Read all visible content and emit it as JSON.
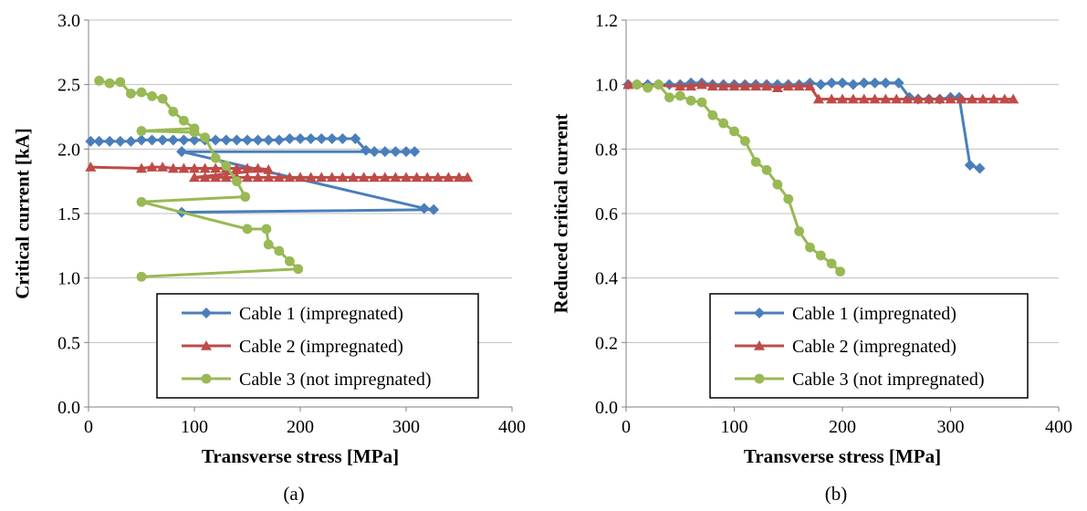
{
  "chart_data": [
    {
      "type": "line",
      "panel_label": "(a)",
      "xlabel": "Transverse stress [MPa]",
      "ylabel": "Critical current [kA]",
      "xlim": [
        0,
        400
      ],
      "ylim": [
        0,
        3.0
      ],
      "xticks": [
        "0",
        "100",
        "200",
        "300",
        "400"
      ],
      "yticks": [
        "0.0",
        "0.5",
        "1.0",
        "1.5",
        "2.0",
        "2.5",
        "3.0"
      ],
      "grid": "horizontal",
      "legend_position": "bottom-right",
      "series": [
        {
          "name": "Cable 1 (impregnated)",
          "color": "#4a7ebb",
          "marker": "diamond",
          "points": [
            [
              2,
              2.06
            ],
            [
              10,
              2.06
            ],
            [
              20,
              2.06
            ],
            [
              30,
              2.06
            ],
            [
              40,
              2.06
            ],
            [
              50,
              2.07
            ],
            [
              60,
              2.07
            ],
            [
              70,
              2.07
            ],
            [
              80,
              2.07
            ],
            [
              90,
              2.07
            ],
            [
              100,
              2.07
            ],
            [
              110,
              2.07
            ],
            [
              120,
              2.07
            ],
            [
              130,
              2.07
            ],
            [
              140,
              2.07
            ],
            [
              150,
              2.07
            ],
            [
              160,
              2.07
            ],
            [
              170,
              2.07
            ],
            [
              180,
              2.07
            ],
            [
              190,
              2.08
            ],
            [
              200,
              2.08
            ],
            [
              210,
              2.08
            ],
            [
              220,
              2.08
            ],
            [
              230,
              2.08
            ],
            [
              240,
              2.08
            ],
            [
              252,
              2.08
            ],
            [
              262,
              1.99
            ],
            [
              270,
              1.98
            ],
            [
              280,
              1.98
            ],
            [
              290,
              1.98
            ],
            [
              300,
              1.98
            ],
            [
              308,
              1.98
            ],
            [
              88,
              1.98
            ],
            [
              317,
              1.54
            ],
            [
              326,
              1.53
            ],
            [
              88,
              1.51
            ]
          ]
        },
        {
          "name": "Cable 2 (impregnated)",
          "color": "#be4b48",
          "marker": "triangle",
          "points": [
            [
              2,
              1.86
            ],
            [
              50,
              1.85
            ],
            [
              60,
              1.86
            ],
            [
              70,
              1.86
            ],
            [
              80,
              1.85
            ],
            [
              90,
              1.85
            ],
            [
              100,
              1.85
            ],
            [
              110,
              1.85
            ],
            [
              120,
              1.85
            ],
            [
              130,
              1.85
            ],
            [
              140,
              1.85
            ],
            [
              150,
              1.85
            ],
            [
              160,
              1.85
            ],
            [
              170,
              1.84
            ],
            [
              100,
              1.78
            ],
            [
              110,
              1.78
            ],
            [
              120,
              1.78
            ],
            [
              130,
              1.78
            ],
            [
              140,
              1.78
            ],
            [
              150,
              1.78
            ],
            [
              160,
              1.78
            ],
            [
              170,
              1.78
            ],
            [
              180,
              1.78
            ],
            [
              190,
              1.78
            ],
            [
              200,
              1.78
            ],
            [
              210,
              1.78
            ],
            [
              220,
              1.78
            ],
            [
              230,
              1.78
            ],
            [
              240,
              1.78
            ],
            [
              250,
              1.78
            ],
            [
              260,
              1.78
            ],
            [
              270,
              1.78
            ],
            [
              280,
              1.78
            ],
            [
              290,
              1.78
            ],
            [
              300,
              1.78
            ],
            [
              310,
              1.78
            ],
            [
              320,
              1.78
            ],
            [
              330,
              1.78
            ],
            [
              340,
              1.78
            ],
            [
              350,
              1.78
            ],
            [
              358,
              1.78
            ]
          ]
        },
        {
          "name": "Cable 3 (not impregnated)",
          "color": "#98b954",
          "marker": "circle",
          "points": [
            [
              10,
              2.53
            ],
            [
              20,
              2.51
            ],
            [
              30,
              2.52
            ],
            [
              40,
              2.43
            ],
            [
              50,
              2.44
            ],
            [
              60,
              2.41
            ],
            [
              70,
              2.39
            ],
            [
              80,
              2.29
            ],
            [
              90,
              2.22
            ],
            [
              100,
              2.16
            ],
            [
              50,
              2.14
            ],
            [
              100,
              2.13
            ],
            [
              110,
              2.09
            ],
            [
              120,
              1.93
            ],
            [
              130,
              1.87
            ],
            [
              140,
              1.75
            ],
            [
              148,
              1.63
            ],
            [
              50,
              1.59
            ],
            [
              150,
              1.38
            ],
            [
              168,
              1.38
            ],
            [
              170,
              1.26
            ],
            [
              180,
              1.21
            ],
            [
              190,
              1.13
            ],
            [
              198,
              1.07
            ],
            [
              50,
              1.01
            ]
          ]
        }
      ]
    },
    {
      "type": "line",
      "panel_label": "(b)",
      "xlabel": "Transverse stress [MPa]",
      "ylabel": "Reduced critical current",
      "xlim": [
        0,
        400
      ],
      "ylim": [
        0,
        1.2
      ],
      "xticks": [
        "0",
        "100",
        "200",
        "300",
        "400"
      ],
      "yticks": [
        "0.0",
        "0.2",
        "0.4",
        "0.6",
        "0.8",
        "1.0",
        "1.2"
      ],
      "grid": "horizontal",
      "legend_position": "bottom-right",
      "series": [
        {
          "name": "Cable 1 (impregnated)",
          "color": "#4a7ebb",
          "marker": "diamond",
          "points": [
            [
              2,
              1.0
            ],
            [
              10,
              1.0
            ],
            [
              20,
              1.0
            ],
            [
              30,
              1.0
            ],
            [
              40,
              1.0
            ],
            [
              50,
              1.0
            ],
            [
              60,
              1.005
            ],
            [
              70,
              1.005
            ],
            [
              80,
              1.0
            ],
            [
              90,
              1.0
            ],
            [
              100,
              1.0
            ],
            [
              110,
              1.0
            ],
            [
              120,
              1.0
            ],
            [
              130,
              1.0
            ],
            [
              140,
              1.0
            ],
            [
              150,
              1.0
            ],
            [
              160,
              1.0
            ],
            [
              170,
              1.005
            ],
            [
              180,
              1.0
            ],
            [
              190,
              1.005
            ],
            [
              200,
              1.005
            ],
            [
              210,
              1.0
            ],
            [
              220,
              1.005
            ],
            [
              230,
              1.005
            ],
            [
              240,
              1.005
            ],
            [
              252,
              1.005
            ],
            [
              262,
              0.96
            ],
            [
              270,
              0.955
            ],
            [
              280,
              0.955
            ],
            [
              290,
              0.955
            ],
            [
              300,
              0.96
            ],
            [
              308,
              0.96
            ],
            [
              318,
              0.75
            ],
            [
              327,
              0.74
            ]
          ]
        },
        {
          "name": "Cable 2 (impregnated)",
          "color": "#be4b48",
          "marker": "triangle",
          "points": [
            [
              2,
              1.0
            ],
            [
              50,
              0.995
            ],
            [
              60,
              0.995
            ],
            [
              70,
              1.0
            ],
            [
              80,
              0.995
            ],
            [
              90,
              0.995
            ],
            [
              100,
              0.995
            ],
            [
              110,
              0.995
            ],
            [
              120,
              0.995
            ],
            [
              130,
              0.995
            ],
            [
              140,
              0.99
            ],
            [
              150,
              0.995
            ],
            [
              160,
              0.995
            ],
            [
              170,
              0.995
            ],
            [
              178,
              0.955
            ],
            [
              190,
              0.955
            ],
            [
              200,
              0.955
            ],
            [
              210,
              0.955
            ],
            [
              220,
              0.955
            ],
            [
              230,
              0.955
            ],
            [
              240,
              0.955
            ],
            [
              250,
              0.955
            ],
            [
              260,
              0.955
            ],
            [
              270,
              0.955
            ],
            [
              280,
              0.955
            ],
            [
              290,
              0.955
            ],
            [
              300,
              0.955
            ],
            [
              310,
              0.955
            ],
            [
              320,
              0.955
            ],
            [
              330,
              0.955
            ],
            [
              340,
              0.955
            ],
            [
              350,
              0.955
            ],
            [
              358,
              0.955
            ]
          ]
        },
        {
          "name": "Cable 3 (not impregnated)",
          "color": "#98b954",
          "marker": "circle",
          "points": [
            [
              10,
              1.0
            ],
            [
              20,
              0.99
            ],
            [
              30,
              1.0
            ],
            [
              40,
              0.96
            ],
            [
              50,
              0.965
            ],
            [
              60,
              0.95
            ],
            [
              70,
              0.945
            ],
            [
              80,
              0.905
            ],
            [
              90,
              0.88
            ],
            [
              100,
              0.855
            ],
            [
              110,
              0.825
            ],
            [
              120,
              0.76
            ],
            [
              130,
              0.735
            ],
            [
              140,
              0.69
            ],
            [
              150,
              0.645
            ],
            [
              160,
              0.545
            ],
            [
              170,
              0.495
            ],
            [
              180,
              0.47
            ],
            [
              190,
              0.445
            ],
            [
              198,
              0.42
            ]
          ]
        }
      ]
    }
  ]
}
